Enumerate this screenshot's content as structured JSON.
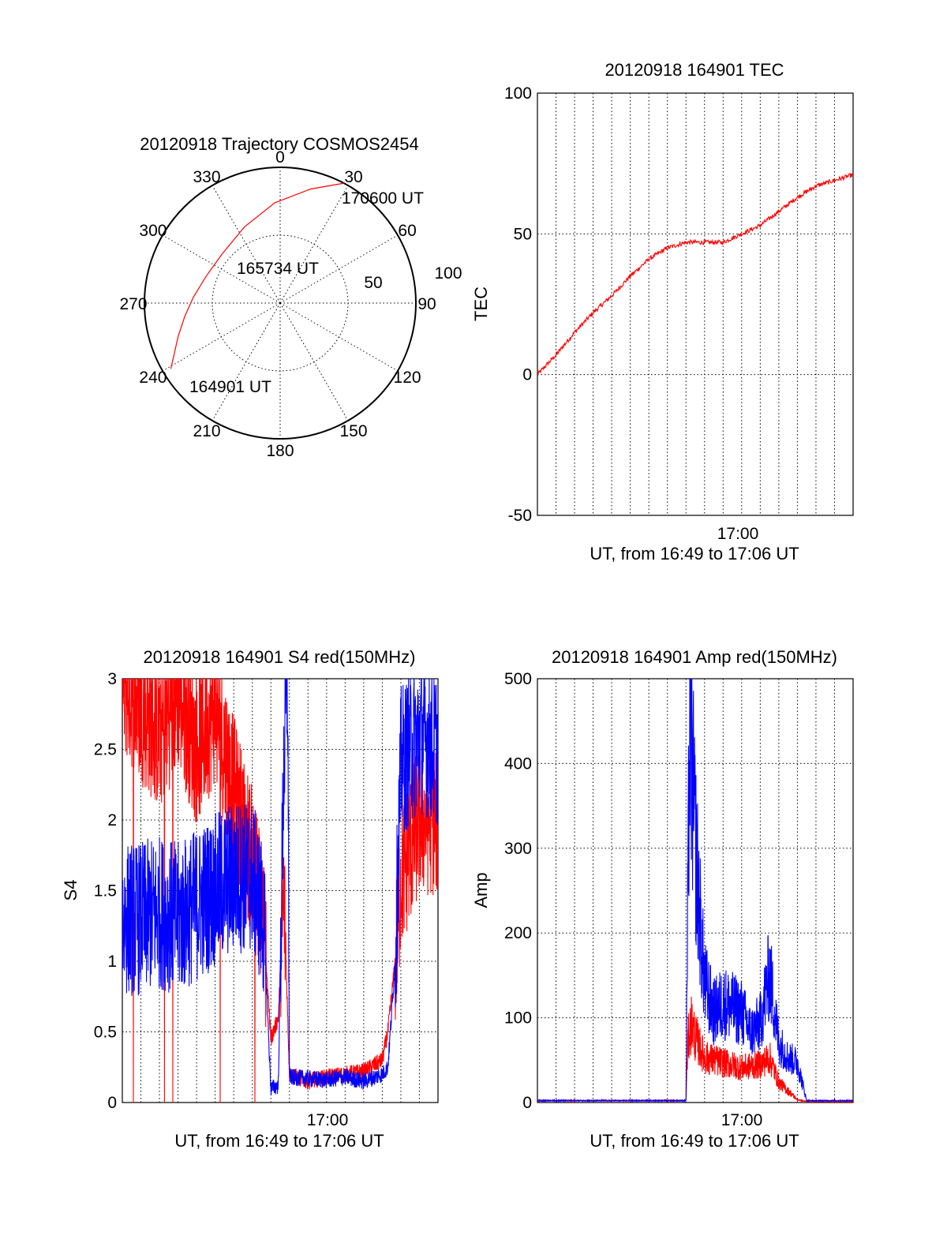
{
  "colors": {
    "red_channel": "#ff0000",
    "blue_channel": "#0000ff",
    "grid": "#000000"
  },
  "chart_data": [
    {
      "id": "trajectory",
      "type": "polar",
      "title": "20120918 Trajectory COSMOS2454",
      "azimuth_labels": [
        "0",
        "30",
        "60",
        "90",
        "120",
        "150",
        "180",
        "210",
        "240",
        "270",
        "300",
        "330"
      ],
      "radial_labels": [
        "50",
        "100"
      ],
      "start_label": "164901 UT",
      "mid_label": "165734 UT",
      "end_label": "170600 UT",
      "trajectory": {
        "azimuth_deg": [
          239,
          244,
          252,
          262,
          274,
          290,
          310,
          335,
          357,
          15,
          28
        ],
        "zenith": [
          94,
          87,
          79,
          71,
          64,
          58,
          56,
          62,
          74,
          87,
          100
        ]
      }
    },
    {
      "id": "tec",
      "type": "line",
      "title": "20120918 164901 TEC",
      "ylabel": "TEC",
      "xlabel": "UT, from 16:49 to 17:06 UT",
      "ylim": [
        -50,
        100
      ],
      "yticks": [
        "100",
        "50",
        "0",
        "-50"
      ],
      "xticks": [
        "17:00"
      ],
      "series": [
        {
          "color": "red",
          "x_min": [
            0,
            1,
            2,
            3,
            4,
            5,
            6,
            7,
            8,
            9,
            10,
            11,
            12,
            13,
            14,
            15,
            16,
            17
          ],
          "values": [
            0,
            7,
            15,
            22,
            28,
            35,
            41,
            45,
            47,
            47,
            47,
            50,
            53,
            58,
            63,
            67,
            69,
            71
          ]
        }
      ]
    },
    {
      "id": "s4",
      "type": "line",
      "title": "20120918 164901 S4 red(150MHz)",
      "ylabel": "S4",
      "xlabel": "UT, from 16:49 to 17:06 UT",
      "ylim": [
        0,
        3
      ],
      "yticks": [
        "3",
        "2.5",
        "2",
        "1.5",
        "1",
        "0.5",
        "0"
      ],
      "xticks": [
        "17:00"
      ],
      "series": [
        {
          "color": "red",
          "x_min": [
            0,
            1,
            2,
            3,
            4,
            5,
            6,
            7,
            7.6,
            8,
            8.4,
            8.7,
            9,
            10,
            11,
            12,
            13,
            14,
            14.3,
            14.7,
            15,
            15.5,
            16,
            17
          ],
          "values": [
            3,
            2.8,
            2.6,
            2.9,
            2.5,
            2.8,
            2.2,
            1.7,
            1.3,
            0.45,
            0.6,
            1.5,
            0.2,
            0.15,
            0.18,
            0.2,
            0.22,
            0.3,
            0.5,
            1.0,
            1.6,
            1.8,
            2.0,
            2.0
          ]
        },
        {
          "color": "blue",
          "x_min": [
            0,
            1,
            2,
            3,
            4,
            5,
            6,
            7,
            7.6,
            8,
            8.4,
            8.7,
            8.9,
            9,
            10,
            11,
            12,
            13,
            14,
            14.3,
            14.7,
            15,
            15.5,
            16,
            17
          ],
          "values": [
            1.3,
            1.3,
            1.35,
            1.3,
            1.4,
            1.5,
            1.6,
            1.6,
            1.3,
            0.1,
            0.12,
            2.4,
            3,
            0.18,
            0.17,
            0.16,
            0.18,
            0.15,
            0.2,
            0.25,
            1.0,
            2.4,
            2.5,
            2.6,
            2.5
          ]
        }
      ]
    },
    {
      "id": "amp",
      "type": "line",
      "title": "20120918 164901 Amp red(150MHz)",
      "ylabel": "Amp",
      "xlabel": "UT, from 16:49 to 17:06 UT",
      "ylim": [
        0,
        500
      ],
      "yticks": [
        "500",
        "400",
        "300",
        "200",
        "100",
        "0"
      ],
      "xticks": [
        "17:00"
      ],
      "series": [
        {
          "color": "red",
          "x_min": [
            0,
            8,
            8.1,
            8.3,
            8.5,
            9,
            10,
            11,
            12,
            12.5,
            13,
            14,
            14.5,
            15,
            16,
            17
          ],
          "values": [
            2,
            2,
            60,
            80,
            65,
            45,
            40,
            35,
            38,
            45,
            20,
            3,
            1,
            1,
            1,
            1
          ]
        },
        {
          "color": "blue",
          "x_min": [
            0,
            8,
            8.1,
            8.2,
            8.5,
            8.8,
            9,
            9.5,
            10,
            11,
            11.5,
            12,
            12.5,
            13,
            13.5,
            14,
            14.5,
            15,
            16,
            17
          ],
          "values": [
            2,
            2,
            200,
            380,
            260,
            170,
            120,
            90,
            100,
            90,
            70,
            80,
            130,
            60,
            45,
            40,
            2,
            2,
            2,
            2
          ]
        }
      ]
    }
  ]
}
